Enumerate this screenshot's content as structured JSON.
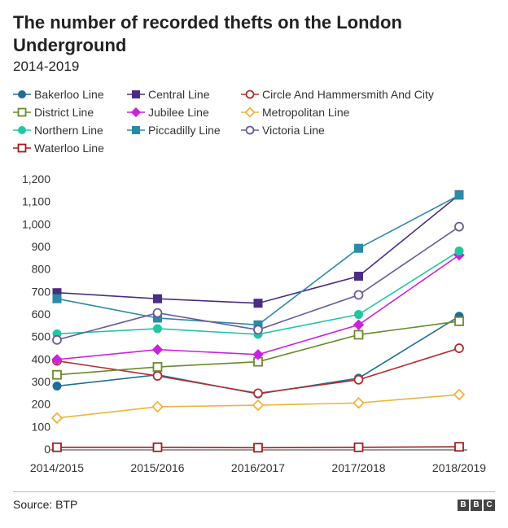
{
  "title": "The number of recorded thefts on the London Underground",
  "subtitle": "2014-2019",
  "source": "Source: BTP",
  "logo": [
    "B",
    "B",
    "C"
  ],
  "chart_data": {
    "type": "line",
    "categories": [
      "2014/2015",
      "2015/2016",
      "2016/2017",
      "2017/2018",
      "2018/2019"
    ],
    "ylim": [
      0,
      1200
    ],
    "yticks": [
      0,
      100,
      200,
      300,
      400,
      500,
      600,
      700,
      800,
      900,
      1000,
      1100,
      1200
    ],
    "ytick_labels": [
      "0",
      "100",
      "200",
      "300",
      "400",
      "500",
      "600",
      "700",
      "800",
      "900",
      "1,000",
      "1,100",
      "1,200"
    ],
    "grid": false,
    "legend_position": "top",
    "series": [
      {
        "name": "Bakerloo Line",
        "color": "#1f6f94",
        "marker": "circle-filled",
        "values": [
          280,
          330,
          245,
          315,
          590
        ]
      },
      {
        "name": "Central Line",
        "color": "#4b2d83",
        "marker": "square-filled",
        "values": [
          695,
          668,
          648,
          768,
          1130
        ]
      },
      {
        "name": "Circle And Hammersmith And City",
        "color": "#b03030",
        "marker": "circle-open",
        "values": [
          392,
          325,
          248,
          308,
          448
        ]
      },
      {
        "name": "District Line",
        "color": "#6a8a2a",
        "marker": "square-open",
        "values": [
          330,
          365,
          388,
          508,
          568
        ]
      },
      {
        "name": "Jubilee Line",
        "color": "#cc22dd",
        "marker": "diamond-filled",
        "values": [
          398,
          442,
          420,
          552,
          862
        ]
      },
      {
        "name": "Metropolitan Line",
        "color": "#f0b43c",
        "marker": "diamond-open",
        "values": [
          138,
          188,
          195,
          205,
          242
        ]
      },
      {
        "name": "Northern Line",
        "color": "#22c7a1",
        "marker": "circle-filled",
        "values": [
          512,
          535,
          510,
          598,
          880
        ]
      },
      {
        "name": "Piccadilly Line",
        "color": "#2a8aa8",
        "marker": "square-filled",
        "values": [
          668,
          582,
          552,
          892,
          1128
        ]
      },
      {
        "name": "Victoria Line",
        "color": "#6a5a9a",
        "marker": "circle-open",
        "values": [
          485,
          605,
          530,
          685,
          988
        ]
      },
      {
        "name": "Waterloo Line",
        "color": "#a02020",
        "marker": "square-open",
        "values": [
          8,
          8,
          6,
          8,
          10
        ]
      }
    ]
  }
}
